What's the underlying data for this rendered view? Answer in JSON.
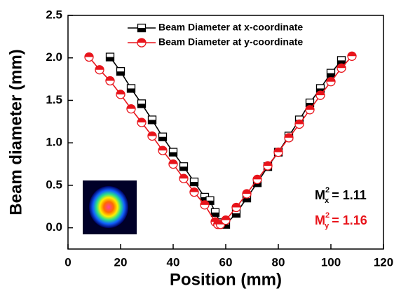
{
  "chart_data": {
    "type": "line",
    "xlabel": "Position (mm)",
    "ylabel": "Beam diameter (mm)",
    "xlim": [
      0,
      120
    ],
    "xticks": [
      0,
      20,
      40,
      60,
      80,
      100,
      120
    ],
    "ylim": [
      -0.25,
      2.5
    ],
    "yticks": [
      {
        "value": 0,
        "label": "0.0"
      },
      {
        "value": 0.5,
        "label": "0.5"
      },
      {
        "value": 1,
        "label": "1.0"
      },
      {
        "value": 1.5,
        "label": "1.5"
      },
      {
        "value": 2,
        "label": "2.0"
      },
      {
        "value": 2.5,
        "label": "2.5"
      }
    ],
    "legend": "upper center",
    "series": [
      {
        "name": "Beam Diameter at x-coordinate",
        "color": "#000000",
        "marker": "square",
        "x": [
          16,
          20,
          24,
          28,
          32,
          36,
          40,
          44,
          48,
          52,
          54,
          56,
          58,
          60,
          64,
          68,
          72,
          76,
          80,
          84,
          88,
          92,
          96,
          100,
          104
        ],
        "values": [
          2.01,
          1.84,
          1.64,
          1.46,
          1.27,
          1.07,
          0.89,
          0.72,
          0.54,
          0.36,
          0.32,
          0.18,
          0.06,
          0.04,
          0.17,
          0.35,
          0.53,
          0.72,
          0.89,
          1.08,
          1.27,
          1.47,
          1.64,
          1.82,
          1.97
        ]
      },
      {
        "name": "Beam Diameter at y-coordinate",
        "color": "#e8141b",
        "marker": "circle",
        "x": [
          8,
          12,
          16,
          20,
          24,
          28,
          32,
          36,
          40,
          44,
          48,
          52,
          56,
          57,
          58,
          60,
          64,
          68,
          72,
          76,
          80,
          84,
          88,
          92,
          96,
          100,
          104,
          108
        ],
        "values": [
          2.01,
          1.86,
          1.73,
          1.57,
          1.4,
          1.24,
          1.08,
          0.91,
          0.75,
          0.58,
          0.42,
          0.27,
          0.07,
          0.04,
          0.04,
          0.09,
          0.24,
          0.4,
          0.57,
          0.73,
          0.89,
          1.06,
          1.22,
          1.39,
          1.56,
          1.72,
          1.88,
          2.02
        ]
      }
    ],
    "annotations": [
      {
        "base": "M",
        "sup": "2",
        "sub": "x",
        "text": "= 1.11",
        "color": "#000000"
      },
      {
        "base": "M",
        "sup": "2",
        "sub": "y",
        "text": "= 1.16",
        "color": "#e8141b"
      }
    ]
  }
}
